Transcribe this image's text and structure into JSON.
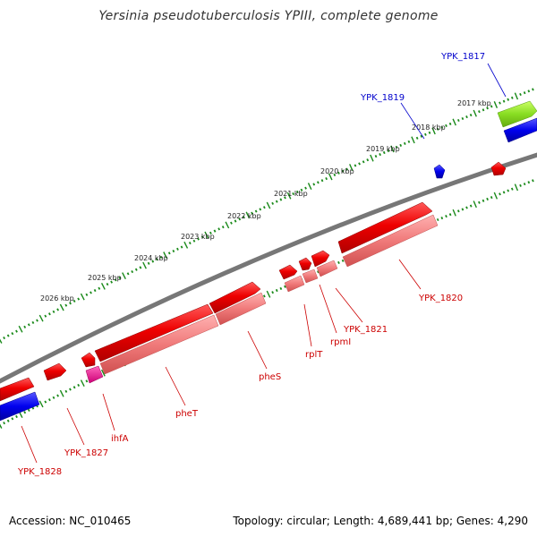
{
  "title": "Yersinia pseudotuberculosis YPIII, complete genome",
  "footer": {
    "accession": "Accession: NC_010465",
    "summary": "Topology: circular; Length: 4,689,441 bp; Genes: 4,290"
  },
  "scale_labels": [
    "2017 kbp",
    "2018 kbp",
    "2019 kbp",
    "2020 kbp",
    "2021 kbp",
    "2022 kbp",
    "2023 kbp",
    "2024 kbp",
    "2025 kbp",
    "2026 kbp"
  ],
  "genes": [
    {
      "name": "YPK_1817",
      "color": "#0000cc"
    },
    {
      "name": "YPK_1819",
      "color": "#0000cc"
    },
    {
      "name": "YPK_1820",
      "color": "#cc0000"
    },
    {
      "name": "YPK_1821",
      "color": "#cc0000"
    },
    {
      "name": "rpmI",
      "color": "#cc0000"
    },
    {
      "name": "rplT",
      "color": "#cc0000"
    },
    {
      "name": "pheS",
      "color": "#cc0000"
    },
    {
      "name": "pheT",
      "color": "#cc0000"
    },
    {
      "name": "ihfA",
      "color": "#cc0000"
    },
    {
      "name": "YPK_1827",
      "color": "#cc0000"
    },
    {
      "name": "YPK_1828",
      "color": "#cc0000"
    }
  ],
  "colors": {
    "backbone": "#777777",
    "tick": "#1a8a1a",
    "cds_forward": "#ee0000",
    "cds_reverse_light": "#f07a7a",
    "misc_blue": "#0000ee",
    "misc_green": "#88dd22",
    "misc_pink": "#ee2288"
  }
}
